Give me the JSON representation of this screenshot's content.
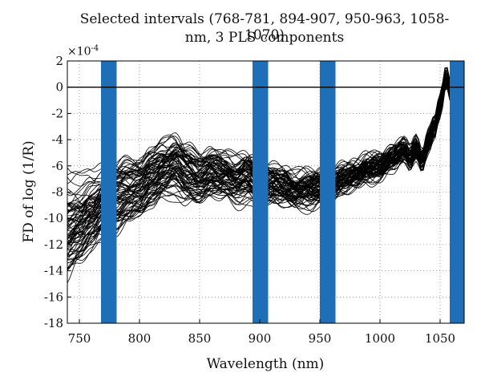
{
  "chart_data": {
    "type": "line",
    "title_line1": "Selected intervals (768-781, 894-907, 950-963, 1058-1070)",
    "title_line2": "nm, 3 PLS components",
    "xlabel": "Wavelength (nm)",
    "ylabel": "FD of log (1/R)",
    "y_scale_label": "×10",
    "y_scale_exponent": "-4",
    "xlim": [
      740,
      1070
    ],
    "ylim": [
      -18,
      2
    ],
    "x_ticks": [
      750,
      800,
      850,
      900,
      950,
      1000,
      1050
    ],
    "y_ticks": [
      2,
      0,
      -2,
      -4,
      -6,
      -8,
      -10,
      -12,
      -14,
      -16,
      -18
    ],
    "grid": "dotted",
    "zero_line": 0,
    "selected_intervals": [
      [
        768,
        781
      ],
      [
        894,
        907
      ],
      [
        950,
        963
      ],
      [
        1058,
        1070
      ]
    ],
    "interval_color": "#1f6fb8",
    "line_color": "#000000",
    "n_spectra": 80,
    "mean_spectrum": {
      "x": [
        740,
        750,
        760,
        770,
        780,
        790,
        800,
        810,
        820,
        830,
        840,
        850,
        860,
        870,
        880,
        890,
        900,
        910,
        920,
        930,
        940,
        950,
        960,
        970,
        980,
        990,
        1000,
        1010,
        1020,
        1025,
        1030,
        1035,
        1040,
        1045,
        1050,
        1055,
        1060,
        1065,
        1070
      ],
      "y": [
        -10.5,
        -10.2,
        -9.6,
        -9.0,
        -8.4,
        -8.0,
        -7.8,
        -7.0,
        -6.4,
        -6.0,
        -6.6,
        -7.0,
        -6.6,
        -6.8,
        -7.2,
        -6.8,
        -7.5,
        -7.4,
        -7.6,
        -8.0,
        -7.8,
        -7.6,
        -7.4,
        -7.0,
        -6.7,
        -6.3,
        -6.0,
        -5.4,
        -4.8,
        -5.4,
        -4.6,
        -5.6,
        -4.2,
        -3.2,
        -1.4,
        0.8,
        -0.6,
        -1.0,
        -1.2
      ]
    }
  }
}
